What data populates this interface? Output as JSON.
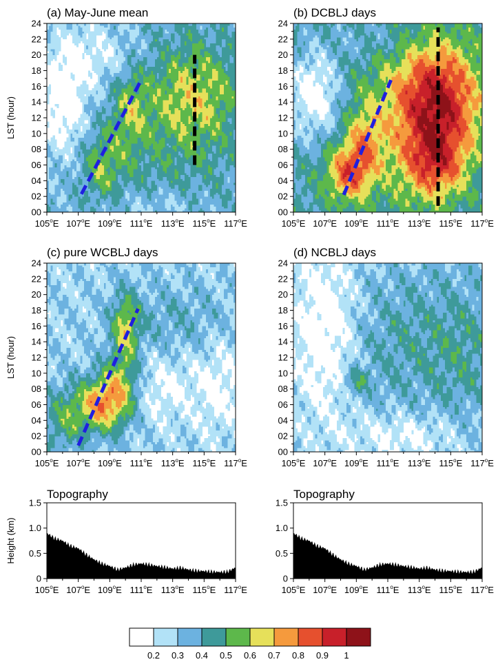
{
  "colors": [
    "#ffffff",
    "#b2e2f7",
    "#6cb2e0",
    "#3e9a9a",
    "#5db84b",
    "#e6e05a",
    "#f59a3d",
    "#e6502e",
    "#c8202a",
    "#8e1219"
  ],
  "colorbar_labels": [
    "0.2",
    "0.3",
    "0.4",
    "0.5",
    "0.6",
    "0.7",
    "0.8",
    "0.9",
    "1"
  ],
  "x_ticks": [
    105,
    107,
    109,
    111,
    113,
    115,
    117
  ],
  "x_tick_labels": [
    "105°E",
    "107°E",
    "109°E",
    "111°E",
    "113°E",
    "115°E",
    "117°E"
  ],
  "y_ticks": [
    "00",
    "02",
    "04",
    "06",
    "08",
    "10",
    "12",
    "14",
    "16",
    "18",
    "20",
    "22",
    "24"
  ],
  "lst_ylabel": "LST (hour)",
  "topo_ylabel": "Height (km)",
  "topo_ticks": [
    "0",
    "0.5",
    "1.0",
    "1.5"
  ],
  "chart_data": [
    {
      "type": "heatmap",
      "title": "(a) May-June mean",
      "xlim": [
        105,
        117
      ],
      "ylim": [
        0,
        24
      ],
      "base": 0.35,
      "blobs": [
        {
          "x": 108.5,
          "y": 6,
          "sx": 0.9,
          "sy": 3,
          "a": 0.2
        },
        {
          "x": 110.3,
          "y": 13,
          "sx": 0.8,
          "sy": 4,
          "a": 0.18
        },
        {
          "x": 114.5,
          "y": 15,
          "sx": 2.0,
          "sy": 4.5,
          "a": 0.22
        },
        {
          "x": 113,
          "y": 10,
          "sx": 3,
          "sy": 8,
          "a": 0.1
        },
        {
          "x": 106.0,
          "y": 14,
          "sx": 1.2,
          "sy": 5,
          "a": -0.25
        },
        {
          "x": 108.5,
          "y": 20,
          "sx": 2.0,
          "sy": 3,
          "a": -0.15
        },
        {
          "x": 112,
          "y": 1,
          "sx": 2,
          "sy": 1.5,
          "a": -0.1
        }
      ],
      "lines": [
        {
          "color": "#1f1fe0",
          "x": [
            107.2,
            111.0
          ],
          "y": [
            2.3,
            16.8
          ]
        },
        {
          "color": "#000000",
          "x": [
            114.4,
            114.4
          ],
          "y": [
            6.0,
            20.0
          ]
        }
      ]
    },
    {
      "type": "heatmap",
      "title": "(b) DCBLJ days",
      "xlim": [
        105,
        117
      ],
      "ylim": [
        0,
        24
      ],
      "base": 0.42,
      "blobs": [
        {
          "x": 108.5,
          "y": 5,
          "sx": 1.0,
          "sy": 2.5,
          "a": 0.38
        },
        {
          "x": 109.5,
          "y": 9,
          "sx": 0.8,
          "sy": 3,
          "a": 0.22
        },
        {
          "x": 114.3,
          "y": 14,
          "sx": 1.8,
          "sy": 5,
          "a": 0.48
        },
        {
          "x": 114.0,
          "y": 6,
          "sx": 1.3,
          "sy": 3,
          "a": 0.3
        },
        {
          "x": 112.5,
          "y": 12,
          "sx": 2.5,
          "sy": 8,
          "a": 0.18
        },
        {
          "x": 106.3,
          "y": 15,
          "sx": 1.2,
          "sy": 4,
          "a": -0.3
        },
        {
          "x": 110.5,
          "y": 22,
          "sx": 2,
          "sy": 2,
          "a": -0.1
        }
      ],
      "lines": [
        {
          "color": "#1f1fe0",
          "x": [
            108.2,
            111.2
          ],
          "y": [
            2.2,
            16.8
          ]
        },
        {
          "color": "#000000",
          "x": [
            114.2,
            114.2
          ],
          "y": [
            0.8,
            23.5
          ]
        }
      ]
    },
    {
      "type": "heatmap",
      "title": "(c) pure WCBLJ days",
      "xlim": [
        105,
        117
      ],
      "ylim": [
        0,
        24
      ],
      "base": 0.28,
      "blobs": [
        {
          "x": 108.5,
          "y": 6,
          "sx": 1.2,
          "sy": 2.5,
          "a": 0.45
        },
        {
          "x": 110.0,
          "y": 16,
          "sx": 0.6,
          "sy": 3,
          "a": 0.32
        },
        {
          "x": 109.8,
          "y": 9,
          "sx": 0.9,
          "sy": 3,
          "a": 0.25
        },
        {
          "x": 106,
          "y": 4,
          "sx": 1.0,
          "sy": 3,
          "a": 0.2
        },
        {
          "x": 113,
          "y": 17,
          "sx": 2.5,
          "sy": 3,
          "a": 0.1
        },
        {
          "x": 112,
          "y": 8,
          "sx": 1.5,
          "sy": 3,
          "a": -0.12
        },
        {
          "x": 116,
          "y": 8,
          "sx": 1.2,
          "sy": 4,
          "a": -0.12
        }
      ],
      "lines": [
        {
          "color": "#1f1fe0",
          "x": [
            107.0,
            110.8
          ],
          "y": [
            0.8,
            18.2
          ]
        }
      ]
    },
    {
      "type": "heatmap",
      "title": "(d) NCBLJ days",
      "xlim": [
        105,
        117
      ],
      "ylim": [
        0,
        24
      ],
      "base": 0.3,
      "blobs": [
        {
          "x": 112.5,
          "y": 14,
          "sx": 3.5,
          "sy": 6,
          "a": 0.12
        },
        {
          "x": 109,
          "y": 9,
          "sx": 0.6,
          "sy": 1.2,
          "a": 0.18
        },
        {
          "x": 116,
          "y": 12,
          "sx": 1.5,
          "sy": 6,
          "a": 0.08
        },
        {
          "x": 107,
          "y": 15,
          "sx": 1.5,
          "sy": 8,
          "a": -0.22
        },
        {
          "x": 112,
          "y": 2,
          "sx": 2.5,
          "sy": 2,
          "a": -0.14
        }
      ],
      "lines": []
    },
    {
      "type": "area",
      "title": "Topography",
      "ylabel": "Height (km)",
      "xlim": [
        105,
        117
      ],
      "ylim": [
        0,
        1.5
      ],
      "x": [
        105,
        105.5,
        106,
        106.5,
        107,
        107.5,
        108,
        108.5,
        109,
        109.5,
        110,
        110.5,
        111,
        111.5,
        112,
        112.5,
        113,
        113.5,
        114,
        114.5,
        115,
        115.5,
        116,
        116.5,
        117
      ],
      "y": [
        0.9,
        0.8,
        0.75,
        0.65,
        0.6,
        0.48,
        0.38,
        0.3,
        0.25,
        0.18,
        0.22,
        0.28,
        0.3,
        0.28,
        0.25,
        0.23,
        0.2,
        0.22,
        0.18,
        0.16,
        0.15,
        0.14,
        0.13,
        0.14,
        0.22
      ]
    },
    {
      "type": "area",
      "title": "Topography",
      "xlim": [
        105,
        117
      ],
      "ylim": [
        0,
        1.5
      ],
      "x": [
        105,
        105.5,
        106,
        106.5,
        107,
        107.5,
        108,
        108.5,
        109,
        109.5,
        110,
        110.5,
        111,
        111.5,
        112,
        112.5,
        113,
        113.5,
        114,
        114.5,
        115,
        115.5,
        116,
        116.5,
        117
      ],
      "y": [
        0.9,
        0.8,
        0.75,
        0.65,
        0.6,
        0.48,
        0.38,
        0.3,
        0.25,
        0.18,
        0.22,
        0.28,
        0.3,
        0.28,
        0.25,
        0.23,
        0.2,
        0.22,
        0.18,
        0.16,
        0.15,
        0.14,
        0.13,
        0.14,
        0.22
      ]
    }
  ]
}
